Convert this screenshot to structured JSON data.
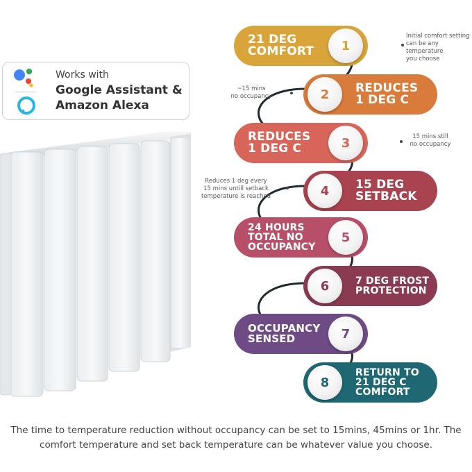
{
  "badge": {
    "works_with": "Works with",
    "line1": "Google Assistant &",
    "line2": "Amazon Alexa",
    "icons": [
      "google-assistant-icon",
      "alexa-icon"
    ]
  },
  "steps": [
    {
      "num": "1",
      "l1": "21 DEG",
      "l2": "COMFORT",
      "l3": "",
      "color": "#d9a53b"
    },
    {
      "num": "2",
      "l1": "REDUCES",
      "l2": "1 DEG C",
      "l3": "",
      "color": "#d97b3b"
    },
    {
      "num": "3",
      "l1": "REDUCES",
      "l2": "1 DEG C",
      "l3": "",
      "color": "#d8655a"
    },
    {
      "num": "4",
      "l1": "15 DEG",
      "l2": "SETBACK",
      "l3": "",
      "color": "#a8434f"
    },
    {
      "num": "5",
      "l1": "24 HOURS",
      "l2": "TOTAL NO",
      "l3": "OCCUPANCY",
      "color": "#b84f69"
    },
    {
      "num": "6",
      "l1": "7 DEG FROST",
      "l2": "PROTECTION",
      "l3": "",
      "color": "#8a3b52"
    },
    {
      "num": "7",
      "l1": "OCCUPANCY",
      "l2": "SENSED",
      "l3": "",
      "color": "#6e4b85"
    },
    {
      "num": "8",
      "l1": "RETURN TO",
      "l2": "21 DEG C",
      "l3": "COMFORT",
      "color": "#1f6873"
    }
  ],
  "notes": {
    "n1": [
      "Initial comfort setting",
      "can be any temperature",
      "you choose"
    ],
    "n2": [
      "~15 mins",
      "no occupancy"
    ],
    "n3": [
      "15 mins still",
      "no occupancy"
    ],
    "n4": [
      "Reduces 1 deg every",
      "15 mins untill setback",
      "temperature is reached"
    ]
  },
  "caption": {
    "line1": "The time to temperature reduction without occupancy can be set to 15mins, 45mins or 1hr. The",
    "line2": "comfort temperature and set back temperature can be whatever value you choose."
  }
}
